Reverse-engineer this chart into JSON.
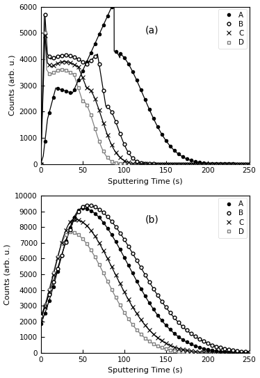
{
  "panel_a": {
    "label": "(a)",
    "ylabel": "Counts (arb. u.)",
    "xlabel": "Sputtering Time (s)",
    "ylim": [
      0,
      6000
    ],
    "xlim": [
      0,
      250
    ],
    "yticks": [
      0,
      1000,
      2000,
      3000,
      4000,
      5000,
      6000
    ],
    "xticks": [
      0,
      50,
      100,
      150,
      200,
      250
    ]
  },
  "panel_b": {
    "label": "(b)",
    "ylabel": "Counts (arb. u.)",
    "xlabel": "Sputtering Time (s)",
    "ylim": [
      0,
      10000
    ],
    "xlim": [
      0,
      250
    ],
    "yticks": [
      0,
      1000,
      2000,
      3000,
      4000,
      5000,
      6000,
      7000,
      8000,
      9000,
      10000
    ],
    "xticks": [
      0,
      50,
      100,
      150,
      200,
      250
    ]
  }
}
